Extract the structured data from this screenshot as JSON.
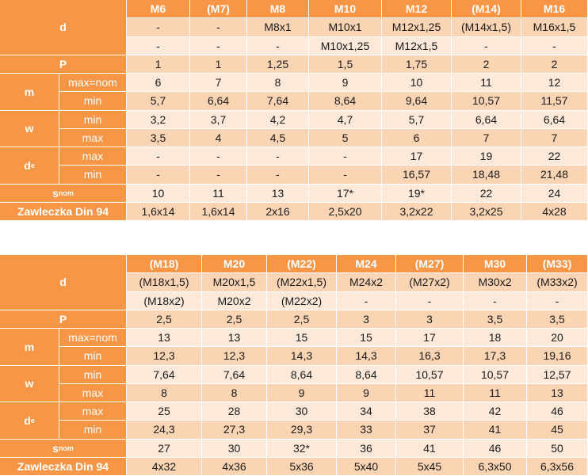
{
  "tables": [
    {
      "header_label": "d",
      "columns": [
        "M6",
        "(M7)",
        "M8",
        "M10",
        "M12",
        "(M14)",
        "M16"
      ],
      "thread_rows": [
        [
          "-",
          "-",
          "M8x1",
          "M10x1",
          "M12x1,25",
          "(M14x1,5)",
          "M16x1,5"
        ],
        [
          "-",
          "-",
          "-",
          "M10x1,25",
          "M12x1,5",
          "-",
          "-"
        ]
      ],
      "groups": [
        {
          "label": "P",
          "values": [
            "1",
            "1",
            "1,25",
            "1,5",
            "1,75",
            "2",
            "2"
          ]
        },
        {
          "label": "m",
          "rows": [
            {
              "label": "max=nom",
              "values": [
                "6",
                "7",
                "8",
                "9",
                "10",
                "11",
                "12"
              ]
            },
            {
              "label": "min",
              "values": [
                "5,7",
                "6,64",
                "7,64",
                "8,64",
                "9,64",
                "10,57",
                "11,57"
              ]
            }
          ]
        },
        {
          "label": "w",
          "rows": [
            {
              "label": "min",
              "values": [
                "3,2",
                "3,7",
                "4,2",
                "4,7",
                "5,7",
                "6,64",
                "6,64"
              ]
            },
            {
              "label": "max",
              "values": [
                "3,5",
                "4",
                "4,5",
                "5",
                "6",
                "7",
                "7"
              ]
            }
          ]
        },
        {
          "label": {
            "text": "d",
            "sub": "e"
          },
          "rows": [
            {
              "label": "max",
              "values": [
                "-",
                "-",
                "-",
                "-",
                "17",
                "19",
                "22"
              ]
            },
            {
              "label": "min",
              "values": [
                "-",
                "-",
                "-",
                "-",
                "16,57",
                "18,48",
                "21,48"
              ]
            }
          ]
        },
        {
          "label": {
            "text": "s",
            "sub": "nom"
          },
          "values": [
            "10",
            "11",
            "13",
            "17*",
            "19*",
            "22",
            "24"
          ]
        },
        {
          "label": "Zawleczka Din 94",
          "values": [
            "1,6x14",
            "1,6x14",
            "2x16",
            "2,5x20",
            "3,2x22",
            "3,2x25",
            "4x28"
          ]
        }
      ]
    },
    {
      "header_label": "d",
      "columns": [
        "(M18)",
        "M20",
        "(M22)",
        "M24",
        "(M27)",
        "M30",
        "(M33)"
      ],
      "thread_rows": [
        [
          "(M18x1,5)",
          "M20x1,5",
          "(M22x1,5)",
          "M24x2",
          "(M27x2)",
          "M30x2",
          "(M33x2)"
        ],
        [
          "(M18x2)",
          "M20x2",
          "(M22x2)",
          "-",
          "-",
          "-",
          "-"
        ]
      ],
      "groups": [
        {
          "label": "P",
          "values": [
            "2,5",
            "2,5",
            "2,5",
            "3",
            "3",
            "3,5",
            "3,5"
          ]
        },
        {
          "label": "m",
          "rows": [
            {
              "label": "max=nom",
              "values": [
                "13",
                "13",
                "15",
                "15",
                "17",
                "18",
                "20"
              ]
            },
            {
              "label": "min",
              "values": [
                "12,3",
                "12,3",
                "14,3",
                "14,3",
                "16,3",
                "17,3",
                "19,16"
              ]
            }
          ]
        },
        {
          "label": "w",
          "rows": [
            {
              "label": "min",
              "values": [
                "7,64",
                "7,64",
                "8,64",
                "8,64",
                "10,57",
                "10,57",
                "12,57"
              ]
            },
            {
              "label": "max",
              "values": [
                "8",
                "8",
                "9",
                "9",
                "11",
                "11",
                "13"
              ]
            }
          ]
        },
        {
          "label": {
            "text": "d",
            "sub": "e"
          },
          "rows": [
            {
              "label": "max",
              "values": [
                "25",
                "28",
                "30",
                "34",
                "38",
                "42",
                "46"
              ]
            },
            {
              "label": "min",
              "values": [
                "24,3",
                "27,3",
                "29,3",
                "33",
                "37",
                "41",
                "45"
              ]
            }
          ]
        },
        {
          "label": {
            "text": "s",
            "sub": "nom"
          },
          "values": [
            "27",
            "30",
            "32*",
            "36",
            "41",
            "46",
            "50"
          ]
        },
        {
          "label": "Zawleczka Din 94",
          "values": [
            "4x32",
            "4x36",
            "5x36",
            "5x40",
            "5x45",
            "6,3x50",
            "6,3x56"
          ]
        }
      ]
    }
  ]
}
